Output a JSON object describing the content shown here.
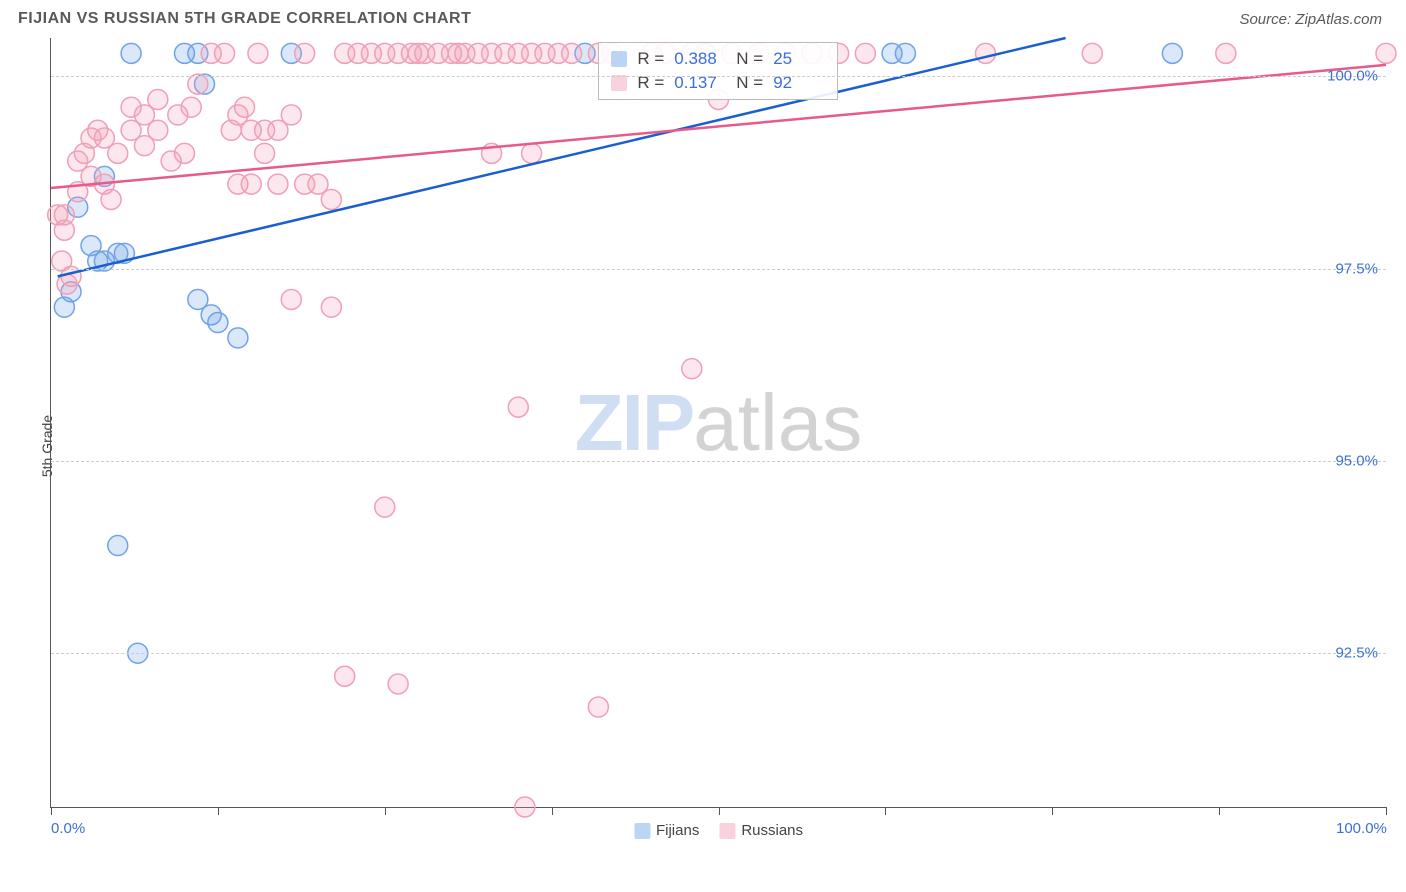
{
  "header": {
    "title": "FIJIAN VS RUSSIAN 5TH GRADE CORRELATION CHART",
    "source": "Source: ZipAtlas.com"
  },
  "watermark": {
    "zip": "ZIP",
    "atlas": "atlas"
  },
  "chart": {
    "type": "scatter",
    "ylabel": "5th Grade",
    "xlim": [
      0,
      100
    ],
    "ylim": [
      90.5,
      100.5
    ],
    "ytick_values": [
      92.5,
      95.0,
      97.5,
      100.0
    ],
    "ytick_labels": [
      "92.5%",
      "95.0%",
      "97.5%",
      "100.0%"
    ],
    "xtick_values": [
      0,
      12.5,
      25,
      37.5,
      50,
      62.5,
      75,
      87.5,
      100
    ],
    "xaxis_labels": [
      {
        "x": 0,
        "text": "0.0%"
      },
      {
        "x": 100,
        "text": "100.0%"
      }
    ],
    "background_color": "#ffffff",
    "grid_color": "#cccccc",
    "marker_radius": 10,
    "marker_fill_opacity": 0.25,
    "marker_stroke_width": 1.5,
    "line_width": 2.5,
    "series": [
      {
        "name": "Fijians",
        "color": "#6fa3e8",
        "line_color": "#1a5fd0",
        "stats": {
          "R": "0.388",
          "N": "25"
        },
        "trend": {
          "x1": 0.5,
          "y1": 97.4,
          "x2": 76,
          "y2": 100.5
        },
        "points": [
          {
            "x": 2,
            "y": 98.3
          },
          {
            "x": 3,
            "y": 97.8
          },
          {
            "x": 3.5,
            "y": 97.6
          },
          {
            "x": 4,
            "y": 97.6
          },
          {
            "x": 5,
            "y": 97.7
          },
          {
            "x": 5.5,
            "y": 97.7
          },
          {
            "x": 1.5,
            "y": 97.2
          },
          {
            "x": 1,
            "y": 97.0
          },
          {
            "x": 4,
            "y": 98.7
          },
          {
            "x": 6,
            "y": 100.3
          },
          {
            "x": 10,
            "y": 100.3
          },
          {
            "x": 11,
            "y": 100.3
          },
          {
            "x": 11.5,
            "y": 99.9
          },
          {
            "x": 11,
            "y": 97.1
          },
          {
            "x": 12,
            "y": 96.9
          },
          {
            "x": 12.5,
            "y": 96.8
          },
          {
            "x": 14,
            "y": 96.6
          },
          {
            "x": 5,
            "y": 93.9
          },
          {
            "x": 6.5,
            "y": 92.5
          },
          {
            "x": 18,
            "y": 100.3
          },
          {
            "x": 40,
            "y": 100.3
          },
          {
            "x": 49,
            "y": 100.3
          },
          {
            "x": 63,
            "y": 100.3
          },
          {
            "x": 64,
            "y": 100.3
          },
          {
            "x": 84,
            "y": 100.3
          }
        ]
      },
      {
        "name": "Russians",
        "color": "#f09fb6",
        "line_color": "#e75a8a",
        "stats": {
          "R": "0.137",
          "N": "92"
        },
        "trend": {
          "x1": 0,
          "y1": 98.55,
          "x2": 100,
          "y2": 100.15
        },
        "points": [
          {
            "x": 0.5,
            "y": 98.2
          },
          {
            "x": 1,
            "y": 98.2
          },
          {
            "x": 1,
            "y": 98.0
          },
          {
            "x": 0.8,
            "y": 97.6
          },
          {
            "x": 1.5,
            "y": 97.4
          },
          {
            "x": 1.2,
            "y": 97.3
          },
          {
            "x": 2,
            "y": 98.5
          },
          {
            "x": 2,
            "y": 98.9
          },
          {
            "x": 2.5,
            "y": 99.0
          },
          {
            "x": 3,
            "y": 99.2
          },
          {
            "x": 3.5,
            "y": 99.3
          },
          {
            "x": 4,
            "y": 99.2
          },
          {
            "x": 3,
            "y": 98.7
          },
          {
            "x": 4,
            "y": 98.6
          },
          {
            "x": 4.5,
            "y": 98.4
          },
          {
            "x": 5,
            "y": 99.0
          },
          {
            "x": 6,
            "y": 99.3
          },
          {
            "x": 6,
            "y": 99.6
          },
          {
            "x": 7,
            "y": 99.5
          },
          {
            "x": 8,
            "y": 99.7
          },
          {
            "x": 7,
            "y": 99.1
          },
          {
            "x": 8,
            "y": 99.3
          },
          {
            "x": 9,
            "y": 98.9
          },
          {
            "x": 10,
            "y": 99.0
          },
          {
            "x": 9.5,
            "y": 99.5
          },
          {
            "x": 10.5,
            "y": 99.6
          },
          {
            "x": 11,
            "y": 99.9
          },
          {
            "x": 12,
            "y": 100.3
          },
          {
            "x": 13,
            "y": 100.3
          },
          {
            "x": 14,
            "y": 99.5
          },
          {
            "x": 14.5,
            "y": 99.6
          },
          {
            "x": 13.5,
            "y": 99.3
          },
          {
            "x": 15,
            "y": 99.3
          },
          {
            "x": 16,
            "y": 99.3
          },
          {
            "x": 16,
            "y": 99.0
          },
          {
            "x": 14,
            "y": 98.6
          },
          {
            "x": 15,
            "y": 98.6
          },
          {
            "x": 15.5,
            "y": 100.3
          },
          {
            "x": 17,
            "y": 99.3
          },
          {
            "x": 18,
            "y": 99.5
          },
          {
            "x": 19,
            "y": 100.3
          },
          {
            "x": 17,
            "y": 98.6
          },
          {
            "x": 18,
            "y": 97.1
          },
          {
            "x": 19,
            "y": 98.6
          },
          {
            "x": 20,
            "y": 98.6
          },
          {
            "x": 21,
            "y": 97.0
          },
          {
            "x": 21,
            "y": 98.4
          },
          {
            "x": 22,
            "y": 100.3
          },
          {
            "x": 23,
            "y": 100.3
          },
          {
            "x": 24,
            "y": 100.3
          },
          {
            "x": 25,
            "y": 100.3
          },
          {
            "x": 26,
            "y": 100.3
          },
          {
            "x": 27,
            "y": 100.3
          },
          {
            "x": 27.5,
            "y": 100.3
          },
          {
            "x": 28,
            "y": 100.3
          },
          {
            "x": 29,
            "y": 100.3
          },
          {
            "x": 30,
            "y": 100.3
          },
          {
            "x": 30.5,
            "y": 100.3
          },
          {
            "x": 31,
            "y": 100.3
          },
          {
            "x": 32,
            "y": 100.3
          },
          {
            "x": 33,
            "y": 100.3
          },
          {
            "x": 34,
            "y": 100.3
          },
          {
            "x": 35,
            "y": 100.3
          },
          {
            "x": 36,
            "y": 100.3
          },
          {
            "x": 37,
            "y": 100.3
          },
          {
            "x": 38,
            "y": 100.3
          },
          {
            "x": 39,
            "y": 100.3
          },
          {
            "x": 41,
            "y": 100.3
          },
          {
            "x": 42,
            "y": 100.3
          },
          {
            "x": 45,
            "y": 100.3
          },
          {
            "x": 46,
            "y": 100.3
          },
          {
            "x": 48,
            "y": 100.3
          },
          {
            "x": 51,
            "y": 100.3
          },
          {
            "x": 53,
            "y": 100.3
          },
          {
            "x": 55,
            "y": 100.3
          },
          {
            "x": 57,
            "y": 100.3
          },
          {
            "x": 59,
            "y": 100.3
          },
          {
            "x": 61,
            "y": 100.3
          },
          {
            "x": 70,
            "y": 100.3
          },
          {
            "x": 78,
            "y": 100.3
          },
          {
            "x": 88,
            "y": 100.3
          },
          {
            "x": 100,
            "y": 100.3
          },
          {
            "x": 22,
            "y": 92.2
          },
          {
            "x": 26,
            "y": 92.1
          },
          {
            "x": 25,
            "y": 94.4
          },
          {
            "x": 35,
            "y": 95.7
          },
          {
            "x": 35.5,
            "y": 90.5
          },
          {
            "x": 41,
            "y": 91.8
          },
          {
            "x": 48,
            "y": 96.2
          },
          {
            "x": 33,
            "y": 99.0
          },
          {
            "x": 36,
            "y": 99.0
          },
          {
            "x": 50,
            "y": 99.7
          }
        ]
      }
    ]
  },
  "stats_box": {
    "labels": {
      "R": "R =",
      "N": "N ="
    }
  },
  "legend": {
    "items": [
      "Fijians",
      "Russians"
    ]
  }
}
